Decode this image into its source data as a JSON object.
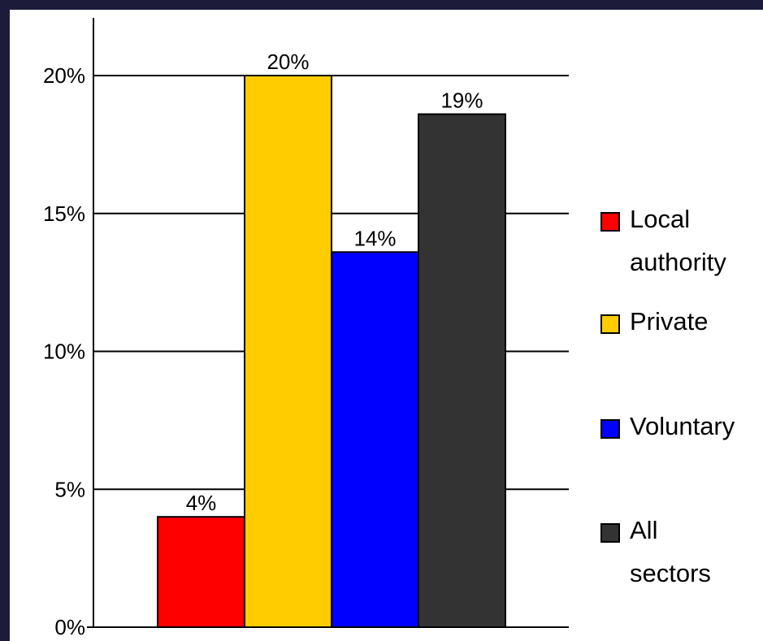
{
  "colors": {
    "frame": "#1c1b3a",
    "local_authority": "#ff0000",
    "private": "#ffcc00",
    "voluntary": "#0000ff",
    "all_sectors": "#333333"
  },
  "chart_data": {
    "type": "bar",
    "title": "",
    "xlabel": "",
    "ylabel": "",
    "ylim": [
      0,
      0.22
    ],
    "yticks": [
      0,
      0.05,
      0.1,
      0.15,
      0.2
    ],
    "ytick_labels": [
      "0%",
      "5%",
      "10%",
      "15%",
      "20%"
    ],
    "grid": true,
    "legend_position": "right",
    "series": [
      {
        "name": "Local authority",
        "value": 0.04,
        "label": "4%",
        "color": "#ff0000",
        "legend_lines": [
          "Local",
          "authority"
        ]
      },
      {
        "name": "Private",
        "value": 0.2,
        "label": "20%",
        "color": "#ffcc00",
        "legend_lines": [
          "Private"
        ]
      },
      {
        "name": "Voluntary",
        "value": 0.136,
        "label": "14%",
        "color": "#0000ff",
        "legend_lines": [
          "Voluntary"
        ]
      },
      {
        "name": "All sectors",
        "value": 0.186,
        "label": "19%",
        "color": "#333333",
        "legend_lines": [
          "All",
          "sectors"
        ]
      }
    ]
  }
}
